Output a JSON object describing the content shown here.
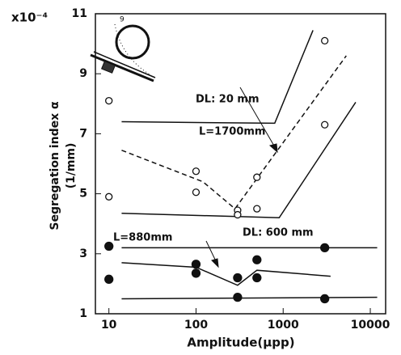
{
  "chart_data": {
    "type": "scatter",
    "x_label": "Amplitude(μpp)",
    "y_label": [
      "Segregation index α",
      "(1/mm)"
    ],
    "y_multiplier": "x10⁻⁴",
    "log_x": true,
    "xlim": [
      7,
      15000
    ],
    "xticks": [
      10,
      100,
      1000,
      10000
    ],
    "ylim": [
      1,
      11
    ],
    "yticks": [
      1,
      3,
      5,
      7,
      9,
      11
    ],
    "series": [
      {
        "marker": "open",
        "color": "#111",
        "x": [
          10,
          10,
          100,
          100,
          300,
          300,
          500,
          500,
          3000,
          3000
        ],
        "values": [
          8.1,
          4.9,
          5.75,
          5.05,
          4.45,
          4.3,
          5.55,
          4.5,
          10.1,
          7.3
        ]
      },
      {
        "marker": "filled",
        "color": "#111",
        "x": [
          10,
          10,
          100,
          100,
          300,
          300,
          500,
          500,
          3000,
          3000
        ],
        "values": [
          3.25,
          2.15,
          2.65,
          2.35,
          2.2,
          1.55,
          2.8,
          2.2,
          3.2,
          1.5
        ]
      }
    ],
    "lines": [
      {
        "dash": false,
        "x": [
          14,
          800,
          2200
        ],
        "values": [
          7.4,
          7.35,
          10.45
        ]
      },
      {
        "dash": true,
        "x": [
          14,
          120,
          280,
          5300
        ],
        "values": [
          6.45,
          5.4,
          4.5,
          9.6
        ]
      },
      {
        "dash": false,
        "x": [
          14,
          900,
          6800
        ],
        "values": [
          4.35,
          4.2,
          8.05
        ]
      },
      {
        "dash": false,
        "x": [
          14,
          12000
        ],
        "values": [
          3.2,
          3.2
        ]
      },
      {
        "dash": false,
        "x": [
          14,
          100,
          300,
          500,
          3500
        ],
        "values": [
          2.7,
          2.55,
          1.95,
          2.45,
          2.25
        ]
      },
      {
        "dash": false,
        "x": [
          14,
          12000
        ],
        "values": [
          1.5,
          1.55
        ]
      }
    ],
    "annotations": [
      "DL: 20 mm",
      "L=1700mm",
      "DL: 600 mm",
      "L=880mm"
    ]
  }
}
